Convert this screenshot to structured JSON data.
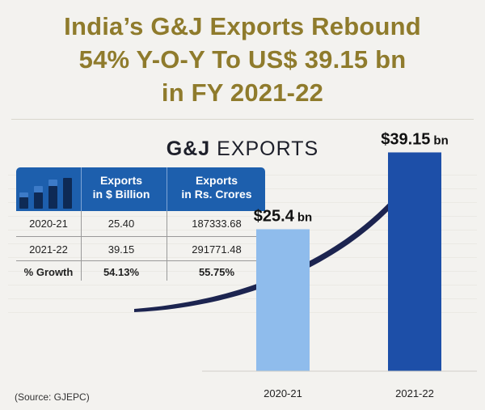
{
  "headline": {
    "line1": "India’s G&J Exports Rebound",
    "line2": "54% Y-O-Y To US$ 39.15 bn",
    "line3": "in FY 2021-22"
  },
  "subhead": {
    "bold": "G&J",
    "rest": "EXPORTS"
  },
  "table": {
    "headers": [
      "Exports\nin $ Billion",
      "Exports\nin Rs. Crores"
    ],
    "header_line1": [
      "Exports",
      "Exports"
    ],
    "header_line2": [
      "in $ Billion",
      "in Rs. Crores"
    ],
    "rows": [
      [
        "2020-21",
        "25.40",
        "187333.68"
      ],
      [
        "2021-22",
        "39.15",
        "291771.48"
      ],
      [
        "% Growth",
        "54.13%",
        "55.75%"
      ]
    ]
  },
  "source": "(Source: GJEPC)",
  "colors": {
    "title": "#8f7b2c",
    "bar_light": "#8fbcec",
    "bar_dark": "#1d4fa8",
    "arrow": "#1c2450",
    "table_header": "#1d5fad"
  },
  "chart_data": {
    "type": "bar",
    "title": "G&J EXPORTS",
    "categories": [
      "2020-21",
      "2021-22"
    ],
    "values": [
      25.4,
      39.15
    ],
    "value_labels": [
      "$25.4",
      "$39.15"
    ],
    "unit_label": "bn",
    "xlabel": "",
    "ylabel": "",
    "ylim": [
      0,
      45
    ]
  }
}
